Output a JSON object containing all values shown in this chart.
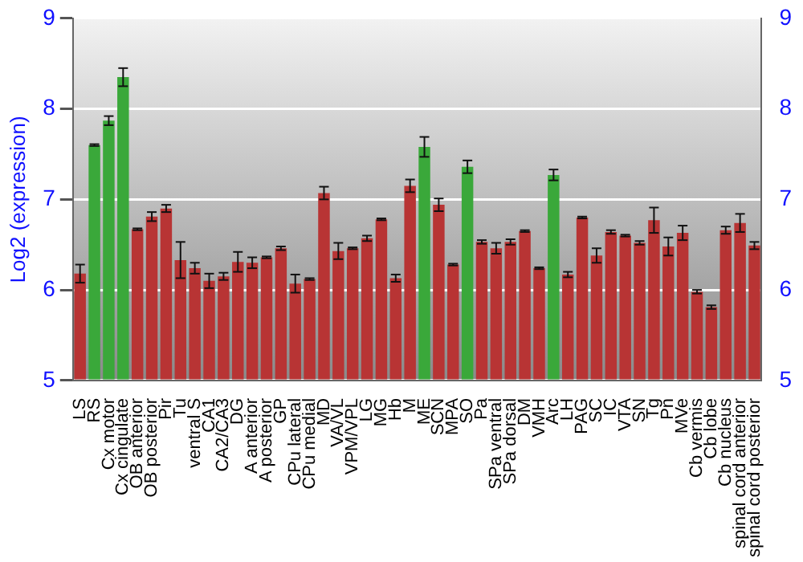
{
  "chart_data": {
    "type": "bar",
    "ylabel": "Log2 (expression)",
    "categories": [
      "LS",
      "RS",
      "Cx motor",
      "Cx cingulate",
      "OB anterior",
      "OB posterior",
      "Pir",
      "Tu",
      "ventral S",
      "CA1",
      "CA2/CA3",
      "DG",
      "A anterior",
      "A posterior",
      "GP",
      "CPu lateral",
      "CPu medial",
      "MD",
      "VA/VL",
      "VPM/VPL",
      "LG",
      "MG",
      "Hb",
      "M",
      "ME",
      "SCN",
      "MPA",
      "SO",
      "Pa",
      "SPa ventral",
      "SPa dorsal",
      "DM",
      "VMH",
      "Arc",
      "LH",
      "PAG",
      "SC",
      "IC",
      "VTA",
      "SN",
      "Tg",
      "Pn",
      "MVe",
      "Cb vermis",
      "Cb lobe",
      "Cb nucleus",
      "spinal cord anterior",
      "spinal cord posterior"
    ],
    "values": [
      6.18,
      7.6,
      7.87,
      8.35,
      6.67,
      6.81,
      6.9,
      6.33,
      6.24,
      6.1,
      6.15,
      6.31,
      6.3,
      6.36,
      6.46,
      6.07,
      6.12,
      7.07,
      6.43,
      6.46,
      6.57,
      6.78,
      6.13,
      7.15,
      7.58,
      6.94,
      6.28,
      7.36,
      6.53,
      6.46,
      6.53,
      6.65,
      6.24,
      7.27,
      6.17,
      6.8,
      6.38,
      6.64,
      6.6,
      6.52,
      6.77,
      6.48,
      6.63,
      5.98,
      5.81,
      6.66,
      6.74,
      6.49
    ],
    "errors": [
      0.1,
      0.01,
      0.05,
      0.1,
      0.01,
      0.05,
      0.04,
      0.2,
      0.06,
      0.08,
      0.04,
      0.11,
      0.06,
      0.01,
      0.02,
      0.1,
      0.01,
      0.07,
      0.09,
      0.01,
      0.03,
      0.01,
      0.04,
      0.07,
      0.11,
      0.07,
      0.01,
      0.07,
      0.02,
      0.06,
      0.03,
      0.01,
      0.01,
      0.06,
      0.03,
      0.01,
      0.08,
      0.02,
      0.01,
      0.02,
      0.14,
      0.1,
      0.08,
      0.02,
      0.02,
      0.04,
      0.1,
      0.04
    ],
    "colors": [
      "#b83434",
      "#3aa83a",
      "#3aa83a",
      "#3aa83a",
      "#b83434",
      "#b83434",
      "#b83434",
      "#b83434",
      "#b83434",
      "#b83434",
      "#b83434",
      "#b83434",
      "#b83434",
      "#b83434",
      "#b83434",
      "#b83434",
      "#b83434",
      "#b83434",
      "#b83434",
      "#b83434",
      "#b83434",
      "#b83434",
      "#b83434",
      "#b83434",
      "#3aa83a",
      "#b83434",
      "#b83434",
      "#3aa83a",
      "#b83434",
      "#b83434",
      "#b83434",
      "#b83434",
      "#b83434",
      "#3aa83a",
      "#b83434",
      "#b83434",
      "#b83434",
      "#b83434",
      "#b83434",
      "#b83434",
      "#b83434",
      "#b83434",
      "#b83434",
      "#b83434",
      "#b83434",
      "#b83434",
      "#b83434",
      "#b83434"
    ],
    "ylim": [
      5,
      9
    ],
    "yticks": [
      5,
      6,
      7,
      8,
      9
    ],
    "y2lim": [
      5,
      9
    ],
    "y2ticks": [
      5,
      6,
      7,
      8,
      9
    ],
    "grid": "y",
    "legend": false
  }
}
